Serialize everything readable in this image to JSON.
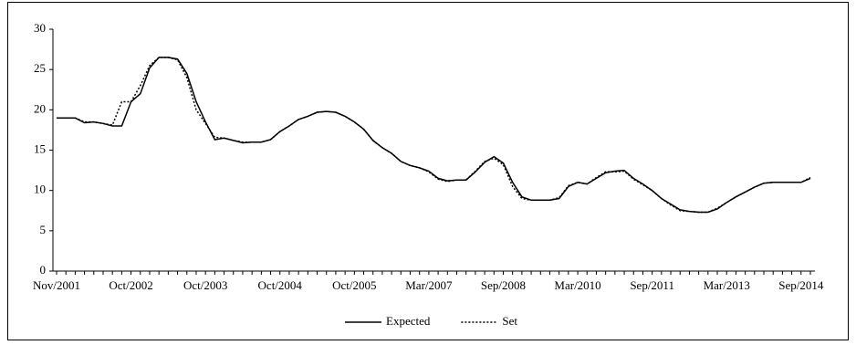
{
  "chart_data": {
    "type": "line",
    "categories": [
      "Nov/2001",
      null,
      null,
      null,
      null,
      null,
      null,
      null,
      "Oct/2002",
      null,
      null,
      null,
      null,
      null,
      null,
      null,
      "Oct/2003",
      null,
      null,
      null,
      null,
      null,
      null,
      null,
      "Oct/2004",
      null,
      null,
      null,
      null,
      null,
      null,
      null,
      "Oct/2005",
      null,
      null,
      null,
      null,
      null,
      null,
      null,
      "Mar/2007",
      null,
      null,
      null,
      null,
      null,
      null,
      null,
      "Sep/2008",
      null,
      null,
      null,
      null,
      null,
      null,
      null,
      "Mar/2010",
      null,
      null,
      null,
      null,
      null,
      null,
      null,
      "Sep/2011",
      null,
      null,
      null,
      null,
      null,
      null,
      null,
      "Mar/2013",
      null,
      null,
      null,
      null,
      null,
      null,
      null,
      "Sep/2014",
      null
    ],
    "series": [
      {
        "name": "Expected",
        "color": "#000000",
        "line_style": "solid",
        "values": [
          19,
          19,
          19,
          18.4,
          18.5,
          18.3,
          18,
          18,
          21,
          22,
          25.2,
          26.5,
          26.5,
          26.3,
          24.5,
          21,
          18.5,
          16.3,
          16.5,
          16.2,
          15.9,
          16,
          16,
          16.3,
          17.3,
          18,
          18.8,
          19.2,
          19.7,
          19.8,
          19.7,
          19.2,
          18.5,
          17.6,
          16.2,
          15.3,
          14.6,
          13.6,
          13.1,
          12.8,
          12.4,
          11.5,
          11.2,
          11.3,
          11.3,
          12.3,
          13.5,
          14.2,
          13.4,
          11,
          9.2,
          8.8,
          8.8,
          8.8,
          9,
          10.5,
          11,
          10.8,
          11.5,
          12.2,
          12.4,
          12.5,
          11.5,
          10.8,
          10,
          9,
          8.3,
          7.6,
          7.4,
          7.3,
          7.3,
          7.7,
          8.5,
          9.2,
          9.8,
          10.4,
          10.9,
          11,
          11,
          11,
          11,
          11.5
        ]
      },
      {
        "name": "Set",
        "color": "#000000",
        "line_style": "dotted",
        "values": [
          19,
          19,
          19,
          18.5,
          18.5,
          18.3,
          18.1,
          21,
          21,
          23,
          25.5,
          26.5,
          26.5,
          26.2,
          24,
          20,
          18.3,
          16.6,
          16.5,
          16.2,
          16,
          16,
          16,
          16.3,
          17.3,
          18,
          18.8,
          19.2,
          19.7,
          19.8,
          19.7,
          19.2,
          18.5,
          17.6,
          16.2,
          15.3,
          14.6,
          13.6,
          13.1,
          12.8,
          12.3,
          11.4,
          11.1,
          11.3,
          11.3,
          12.4,
          13.6,
          14,
          13.2,
          10.5,
          9,
          8.8,
          8.8,
          8.8,
          9.1,
          10.6,
          11,
          10.8,
          11.6,
          12.3,
          12.3,
          12.4,
          11.4,
          10.7,
          10,
          9,
          8.2,
          7.5,
          7.4,
          7.3,
          7.3,
          7.8,
          8.5,
          9.2,
          9.8,
          10.4,
          10.9,
          11,
          11,
          11,
          11,
          11.6
        ]
      }
    ],
    "ylim": [
      0,
      30
    ],
    "yticks": [
      0,
      5,
      10,
      15,
      20,
      25,
      30
    ],
    "grid": false,
    "legend": "bottom"
  }
}
